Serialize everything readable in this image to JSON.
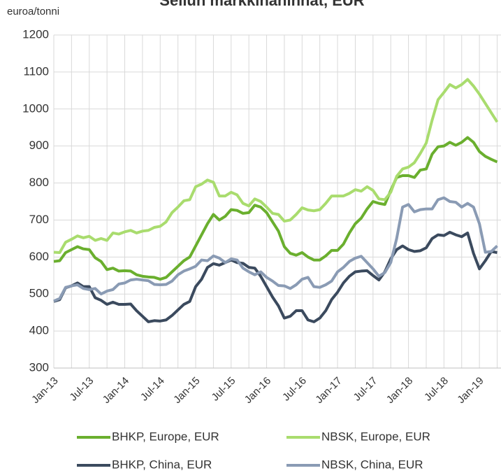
{
  "chart_data": {
    "type": "line",
    "title": "Sellun markkinahinnat, EUR",
    "y_label": "euroa/tonni",
    "categories": [
      "Jan-13",
      null,
      null,
      null,
      null,
      null,
      "Jul-13",
      null,
      null,
      null,
      null,
      null,
      "Jan-14",
      null,
      null,
      null,
      null,
      null,
      "Jul-14",
      null,
      null,
      null,
      null,
      null,
      "Jan-15",
      null,
      null,
      null,
      null,
      null,
      "Jul-15",
      null,
      null,
      null,
      null,
      null,
      "Jan-16",
      null,
      null,
      null,
      null,
      null,
      "Jul-16",
      null,
      null,
      null,
      null,
      null,
      "Jan-17",
      null,
      null,
      null,
      null,
      null,
      "Jul-17",
      null,
      null,
      null,
      null,
      null,
      "Jan-18",
      null,
      null,
      null,
      null,
      null,
      "Jul-18",
      null,
      null,
      null,
      null,
      null,
      "Jan-19",
      null,
      null,
      null
    ],
    "series": [
      {
        "name": "BHKP, Europe, EUR",
        "color": "#6aaf2e",
        "values": [
          588,
          590,
          612,
          620,
          628,
          622,
          620,
          598,
          588,
          566,
          570,
          562,
          563,
          562,
          552,
          548,
          546,
          545,
          540,
          545,
          560,
          575,
          590,
          600,
          630,
          660,
          690,
          715,
          700,
          710,
          728,
          726,
          718,
          720,
          740,
          735,
          720,
          695,
          670,
          628,
          610,
          605,
          612,
          600,
          592,
          592,
          603,
          618,
          618,
          635,
          665,
          690,
          705,
          730,
          750,
          745,
          742,
          780,
          815,
          820,
          820,
          815,
          835,
          838,
          878,
          898,
          900,
          910,
          902,
          910,
          923,
          910,
          885,
          872,
          864,
          857
        ]
      },
      {
        "name": "NBSK, Europe, EUR",
        "color": "#a9dc6e",
        "values": [
          613,
          612,
          640,
          648,
          657,
          652,
          656,
          645,
          650,
          645,
          665,
          662,
          668,
          672,
          665,
          670,
          672,
          680,
          683,
          695,
          720,
          735,
          752,
          755,
          790,
          797,
          808,
          802,
          765,
          765,
          775,
          768,
          745,
          738,
          757,
          750,
          735,
          718,
          715,
          697,
          700,
          715,
          733,
          727,
          725,
          728,
          745,
          765,
          765,
          765,
          772,
          782,
          778,
          790,
          780,
          757,
          755,
          775,
          818,
          838,
          843,
          855,
          880,
          908,
          970,
          1025,
          1045,
          1066,
          1057,
          1066,
          1080,
          1062,
          1040,
          1015,
          990,
          965
        ]
      },
      {
        "name": "BHKP, China, EUR",
        "color": "#3b4a5e",
        "values": [
          480,
          485,
          517,
          522,
          530,
          520,
          520,
          490,
          483,
          472,
          478,
          472,
          472,
          473,
          455,
          440,
          425,
          428,
          427,
          430,
          442,
          457,
          472,
          480,
          520,
          540,
          572,
          582,
          578,
          585,
          592,
          585,
          583,
          572,
          570,
          548,
          520,
          492,
          468,
          435,
          440,
          455,
          455,
          430,
          425,
          435,
          455,
          485,
          505,
          530,
          548,
          560,
          562,
          563,
          550,
          538,
          560,
          595,
          620,
          630,
          620,
          615,
          617,
          625,
          650,
          660,
          658,
          667,
          660,
          655,
          665,
          610,
          568,
          590,
          615,
          612
        ]
      },
      {
        "name": "NBSK, China, EUR",
        "color": "#8a9bb4",
        "values": [
          481,
          488,
          518,
          522,
          525,
          515,
          512,
          515,
          500,
          508,
          512,
          527,
          530,
          538,
          540,
          538,
          536,
          526,
          525,
          526,
          535,
          552,
          562,
          568,
          575,
          592,
          590,
          603,
          597,
          585,
          595,
          592,
          570,
          560,
          552,
          560,
          545,
          535,
          523,
          522,
          515,
          525,
          540,
          545,
          520,
          518,
          525,
          535,
          560,
          572,
          588,
          597,
          602,
          585,
          568,
          548,
          558,
          585,
          650,
          735,
          742,
          722,
          728,
          730,
          730,
          755,
          760,
          750,
          748,
          735,
          745,
          735,
          690,
          613,
          615,
          630
        ]
      }
    ],
    "ylim": [
      300,
      1200
    ],
    "yticks": [
      300,
      400,
      500,
      600,
      700,
      800,
      900,
      1000,
      1100,
      1200
    ],
    "grid": true
  }
}
